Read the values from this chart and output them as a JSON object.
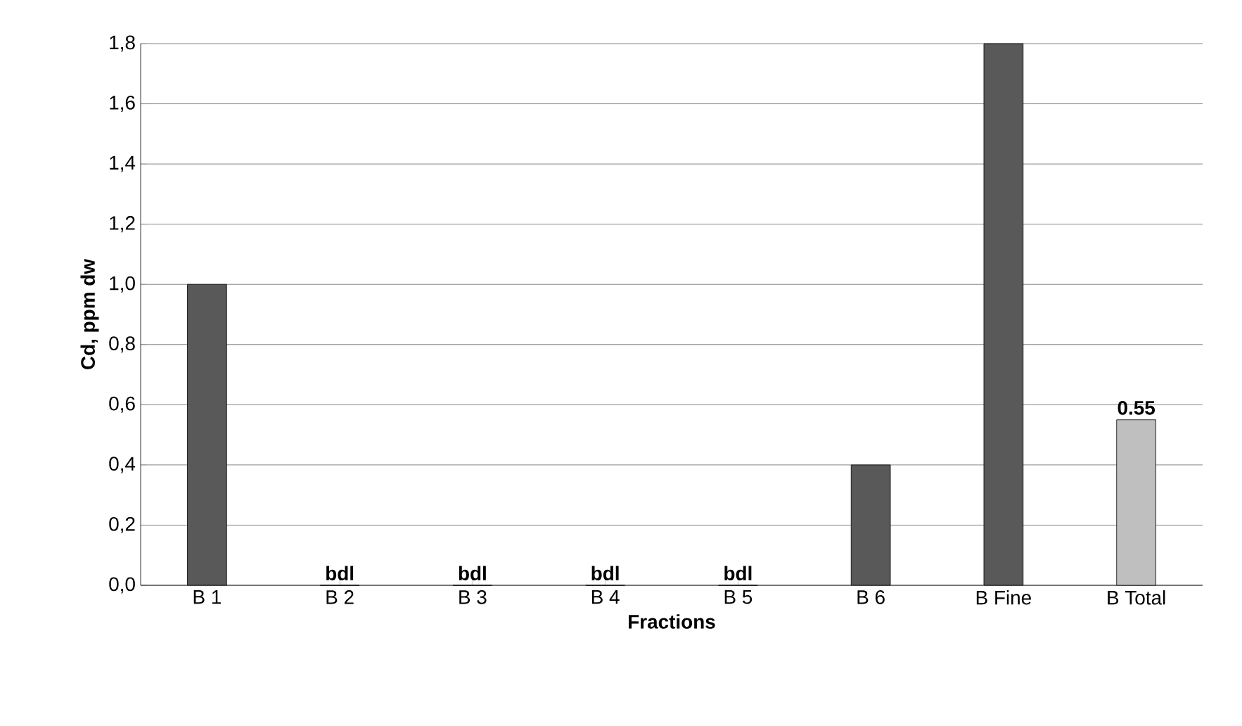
{
  "chart_data": {
    "type": "bar",
    "xlabel": "Fractions",
    "ylabel": "Cd, ppm dw",
    "categories": [
      "B 1",
      "B 2",
      "B 3",
      "B 4",
      "B 5",
      "B 6",
      "B Fine",
      "B Total"
    ],
    "values": [
      1.0,
      0,
      0,
      0,
      0,
      0.4,
      1.8,
      0.55
    ],
    "colors": [
      "#595959",
      "#595959",
      "#595959",
      "#595959",
      "#595959",
      "#595959",
      "#595959",
      "#bfbfbf"
    ],
    "value_labels": [
      null,
      "bdl",
      "bdl",
      "bdl",
      "bdl",
      null,
      null,
      "0.55"
    ],
    "ylim": [
      0,
      1.8
    ],
    "yticks": [
      {
        "value": 0,
        "label": "0,0"
      },
      {
        "value": 0.2,
        "label": "0,2"
      },
      {
        "value": 0.4,
        "label": "0,4"
      },
      {
        "value": 0.6,
        "label": "0,6"
      },
      {
        "value": 0.8,
        "label": "0,8"
      },
      {
        "value": 1.0,
        "label": "1,0"
      },
      {
        "value": 1.2,
        "label": "1,2"
      },
      {
        "value": 1.4,
        "label": "1,4"
      },
      {
        "value": 1.6,
        "label": "1,6"
      },
      {
        "value": 1.8,
        "label": "1,8"
      }
    ],
    "grid": "y"
  }
}
